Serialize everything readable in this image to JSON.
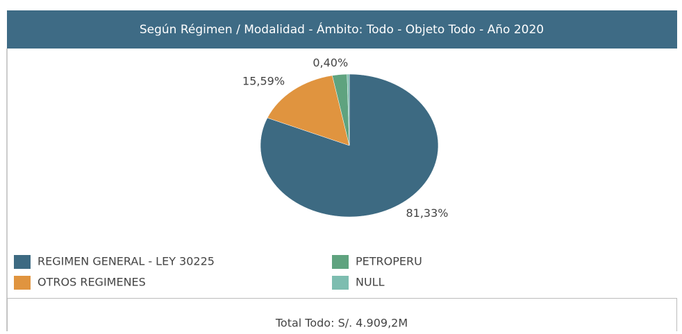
{
  "chart_data": {
    "type": "pie",
    "title": "Según Régimen / Modalidad - Ámbito: Todo - Objeto Todo - Año 2020",
    "categories": [
      "REGIMEN GENERAL - LEY 30225",
      "OTROS REGIMENES",
      "PETROPERU",
      "NULL"
    ],
    "values": [
      81.33,
      15.59,
      2.68,
      0.4
    ],
    "value_labels": [
      "81,33%",
      "15,59%",
      null,
      "0,40%"
    ],
    "colors": [
      "#3d6a82",
      "#e0943f",
      "#5fa37f",
      "#7dbdb0"
    ],
    "total": "Total Todo: S/. 4.909,2M"
  }
}
